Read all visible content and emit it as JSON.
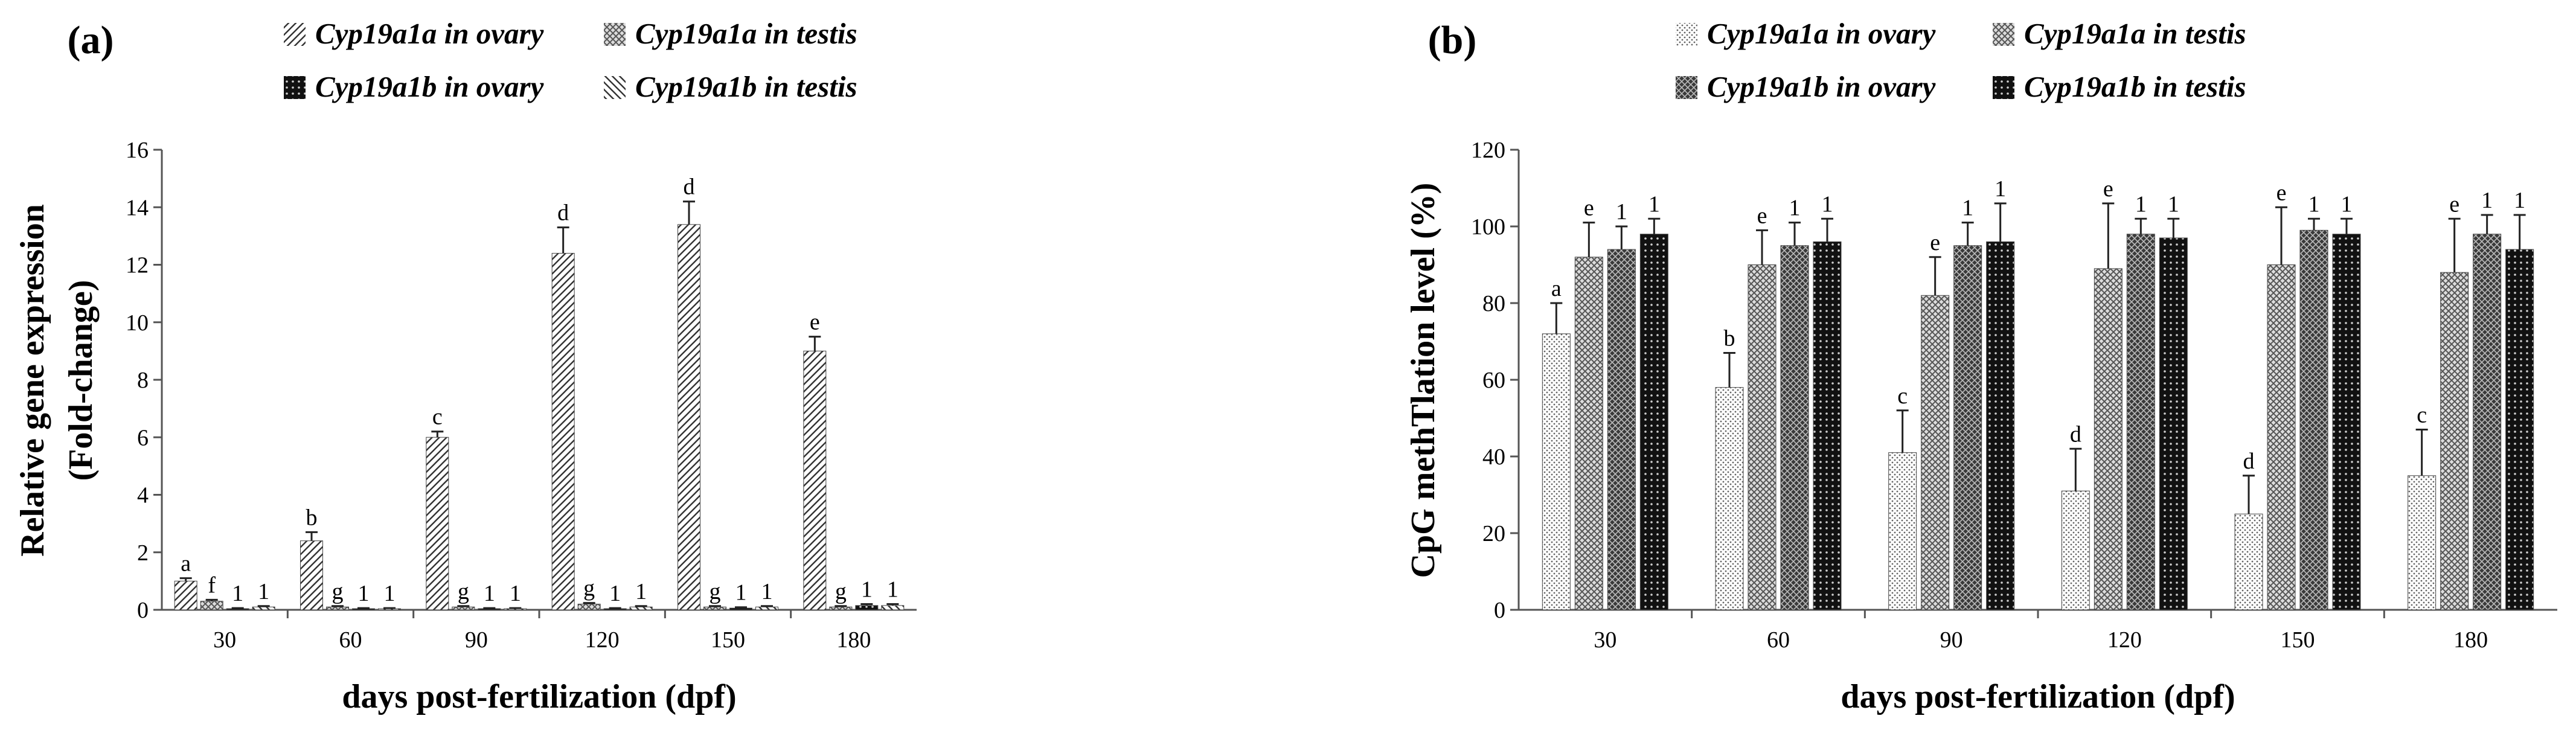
{
  "chart_data": [
    {
      "type": "bar",
      "panel": "(a)",
      "title": "",
      "xlabel": "days post-fertilization (dpf)",
      "ylabel": [
        "Relative gene expression",
        "(Fold-change)"
      ],
      "ylim": [
        0,
        16
      ],
      "yticks": [
        0,
        2,
        4,
        6,
        8,
        10,
        12,
        14,
        16
      ],
      "categories": [
        "30",
        "60",
        "90",
        "120",
        "150",
        "180"
      ],
      "legend": [
        "Cyp19a1a in ovary",
        "Cyp19a1a in testis",
        "Cyp19a1b in ovary",
        "Cyp19a1b in testis"
      ],
      "series": [
        {
          "name": "Cyp19a1a in ovary",
          "pattern": "diag",
          "values": [
            1.0,
            2.4,
            6.0,
            12.4,
            13.4,
            9.0
          ],
          "errors": [
            0.1,
            0.3,
            0.2,
            0.9,
            0.8,
            0.5
          ],
          "labels": [
            "a",
            "b",
            "c",
            "d",
            "d",
            "e"
          ]
        },
        {
          "name": "Cyp19a1a in testis",
          "pattern": "cross",
          "values": [
            0.3,
            0.1,
            0.1,
            0.2,
            0.1,
            0.1
          ],
          "errors": [
            0.05,
            0.03,
            0.03,
            0.04,
            0.03,
            0.03
          ],
          "labels": [
            "f",
            "g",
            "g",
            "g",
            "g",
            "g"
          ]
        },
        {
          "name": "Cyp19a1b in ovary",
          "pattern": "dots",
          "values": [
            0.04,
            0.04,
            0.04,
            0.04,
            0.06,
            0.15
          ],
          "errors": [
            0.02,
            0.02,
            0.02,
            0.02,
            0.03,
            0.05
          ],
          "labels": [
            "1",
            "1",
            "1",
            "1",
            "1",
            "1"
          ]
        },
        {
          "name": "Cyp19a1b in testis",
          "pattern": "diag2",
          "values": [
            0.1,
            0.04,
            0.04,
            0.1,
            0.1,
            0.15
          ],
          "errors": [
            0.03,
            0.02,
            0.02,
            0.03,
            0.03,
            0.05
          ],
          "labels": [
            "1",
            "1",
            "1",
            "1",
            "1",
            "1"
          ]
        }
      ]
    },
    {
      "type": "bar",
      "panel": "(b)",
      "title": "",
      "xlabel": "days post-fertilization (dpf)",
      "ylabel": [
        "CpG methTlation level (%)"
      ],
      "ylim": [
        0,
        120
      ],
      "yticks": [
        0,
        20,
        40,
        60,
        80,
        100,
        120
      ],
      "categories": [
        "30",
        "60",
        "90",
        "120",
        "150",
        "180"
      ],
      "legend": [
        "Cyp19a1a in ovary",
        "Cyp19a1a in testis",
        "Cyp19a1b in ovary",
        "Cyp19a1b in testis"
      ],
      "series": [
        {
          "name": "Cyp19a1a in ovary",
          "pattern": "lightdots",
          "values": [
            72,
            58,
            41,
            31,
            25,
            35
          ],
          "errors": [
            8,
            9,
            11,
            11,
            10,
            12
          ],
          "labels": [
            "a",
            "b",
            "c",
            "d",
            "d",
            "c"
          ]
        },
        {
          "name": "Cyp19a1a in testis",
          "pattern": "cross",
          "values": [
            92,
            90,
            82,
            89,
            90,
            88
          ],
          "errors": [
            9,
            9,
            10,
            17,
            15,
            14
          ],
          "labels": [
            "e",
            "e",
            "e",
            "e",
            "e",
            "e"
          ]
        },
        {
          "name": "Cyp19a1b in ovary",
          "pattern": "darkcross",
          "values": [
            94,
            95,
            95,
            98,
            99,
            98
          ],
          "errors": [
            6,
            6,
            6,
            4,
            3,
            5
          ],
          "labels": [
            "1",
            "1",
            "1",
            "1",
            "1",
            "1"
          ]
        },
        {
          "name": "Cyp19a1b in testis",
          "pattern": "dots",
          "values": [
            98,
            96,
            96,
            97,
            98,
            94
          ],
          "errors": [
            4,
            6,
            10,
            5,
            4,
            9
          ],
          "labels": [
            "1",
            "1",
            "1",
            "1",
            "1",
            "1"
          ]
        }
      ]
    }
  ]
}
